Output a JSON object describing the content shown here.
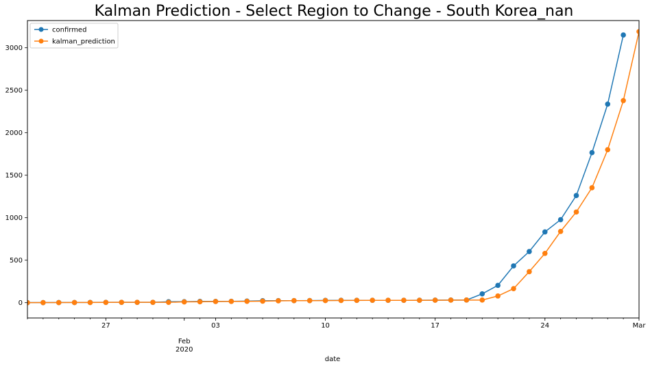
{
  "chart_data": {
    "type": "line",
    "title": "Kalman Prediction - Select Region to Change - South Korea_nan",
    "xlabel": "date",
    "ylabel": "",
    "x_start": "2020-01-22",
    "x_end": "2020-03-01",
    "ylim": [
      -180,
      3320
    ],
    "grid": false,
    "legend_position": "top-left",
    "x_major_ticks": [
      {
        "date": "2020-01-27",
        "label": "27"
      },
      {
        "date": "2020-02-01",
        "label": "Feb",
        "sublabel": "2020"
      },
      {
        "date": "2020-02-03",
        "label": "03"
      },
      {
        "date": "2020-02-10",
        "label": "10"
      },
      {
        "date": "2020-02-17",
        "label": "17"
      },
      {
        "date": "2020-02-24",
        "label": "24"
      },
      {
        "date": "2020-03-01",
        "label": "Mar"
      }
    ],
    "y_ticks": [
      0,
      500,
      1000,
      1500,
      2000,
      2500,
      3000
    ],
    "series": [
      {
        "name": "confirmed",
        "color": "#1f77b4",
        "points": [
          [
            "2020-01-22",
            1
          ],
          [
            "2020-01-23",
            1
          ],
          [
            "2020-01-24",
            2
          ],
          [
            "2020-01-25",
            2
          ],
          [
            "2020-01-26",
            3
          ],
          [
            "2020-01-27",
            4
          ],
          [
            "2020-01-28",
            4
          ],
          [
            "2020-01-29",
            4
          ],
          [
            "2020-01-30",
            4
          ],
          [
            "2020-01-31",
            11
          ],
          [
            "2020-02-01",
            12
          ],
          [
            "2020-02-02",
            15
          ],
          [
            "2020-02-03",
            15
          ],
          [
            "2020-02-04",
            16
          ],
          [
            "2020-02-05",
            19
          ],
          [
            "2020-02-06",
            23
          ],
          [
            "2020-02-07",
            24
          ],
          [
            "2020-02-08",
            24
          ],
          [
            "2020-02-09",
            25
          ],
          [
            "2020-02-10",
            27
          ],
          [
            "2020-02-11",
            28
          ],
          [
            "2020-02-12",
            28
          ],
          [
            "2020-02-13",
            28
          ],
          [
            "2020-02-14",
            28
          ],
          [
            "2020-02-15",
            28
          ],
          [
            "2020-02-16",
            29
          ],
          [
            "2020-02-17",
            30
          ],
          [
            "2020-02-18",
            31
          ],
          [
            "2020-02-19",
            31
          ],
          [
            "2020-02-20",
            104
          ],
          [
            "2020-02-21",
            204
          ],
          [
            "2020-02-22",
            433
          ],
          [
            "2020-02-23",
            602
          ],
          [
            "2020-02-24",
            833
          ],
          [
            "2020-02-25",
            977
          ],
          [
            "2020-02-26",
            1261
          ],
          [
            "2020-02-27",
            1766
          ],
          [
            "2020-02-28",
            2337
          ],
          [
            "2020-02-29",
            3150
          ]
        ]
      },
      {
        "name": "kalman_prediction",
        "color": "#ff7f0e",
        "points": [
          [
            "2020-01-22",
            0
          ],
          [
            "2020-01-23",
            1
          ],
          [
            "2020-01-24",
            1
          ],
          [
            "2020-01-25",
            2
          ],
          [
            "2020-01-26",
            2
          ],
          [
            "2020-01-27",
            3
          ],
          [
            "2020-01-28",
            4
          ],
          [
            "2020-01-29",
            4
          ],
          [
            "2020-01-30",
            4
          ],
          [
            "2020-01-31",
            4
          ],
          [
            "2020-02-01",
            9
          ],
          [
            "2020-02-02",
            11
          ],
          [
            "2020-02-03",
            14
          ],
          [
            "2020-02-04",
            15
          ],
          [
            "2020-02-05",
            16
          ],
          [
            "2020-02-06",
            18
          ],
          [
            "2020-02-07",
            22
          ],
          [
            "2020-02-08",
            24
          ],
          [
            "2020-02-09",
            24
          ],
          [
            "2020-02-10",
            25
          ],
          [
            "2020-02-11",
            26
          ],
          [
            "2020-02-12",
            27
          ],
          [
            "2020-02-13",
            28
          ],
          [
            "2020-02-14",
            28
          ],
          [
            "2020-02-15",
            28
          ],
          [
            "2020-02-16",
            28
          ],
          [
            "2020-02-17",
            29
          ],
          [
            "2020-02-18",
            30
          ],
          [
            "2020-02-19",
            31
          ],
          [
            "2020-02-20",
            31
          ],
          [
            "2020-02-21",
            79
          ],
          [
            "2020-02-22",
            165
          ],
          [
            "2020-02-23",
            365
          ],
          [
            "2020-02-24",
            580
          ],
          [
            "2020-02-25",
            839
          ],
          [
            "2020-02-26",
            1067
          ],
          [
            "2020-02-27",
            1353
          ],
          [
            "2020-02-28",
            1800
          ],
          [
            "2020-02-29",
            2378
          ],
          [
            "2020-03-01",
            3190
          ]
        ]
      }
    ]
  }
}
